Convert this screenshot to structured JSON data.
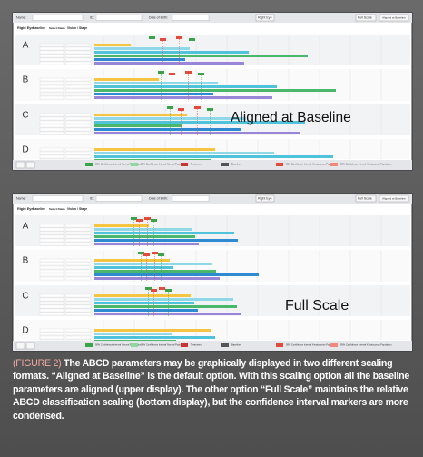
{
  "screenshots": [
    {
      "header": {
        "name_label": "Name:",
        "id_label": "ID:",
        "dob_label": "Date of Birth:",
        "eye": "Right Eye",
        "scale_option": "Full Scale",
        "alt_option": "Aligned at Baseline"
      },
      "side": {
        "eye": "Right Eye",
        "baseline": "Baseline",
        "select": "Select Dates",
        "column": "Vision / Stage"
      },
      "rows": [
        "A",
        "B",
        "C",
        "D"
      ],
      "overlay": "Aligned at Baseline",
      "legend": [
        "95% Confidence Interval Normal Population",
        "95% Confidence Interval Normal Population",
        "Treatment",
        "Baseline",
        "95% Confidence Interval Keratoconus Population",
        "95% Confidence Interval Keratoconus Population"
      ]
    },
    {
      "header": {
        "name_label": "Name:",
        "id_label": "ID:",
        "dob_label": "Date of Birth:",
        "eye": "Right Eye",
        "scale_option": "Full Scale",
        "alt_option": "Aligned at Baseline"
      },
      "side": {
        "eye": "Right Eye",
        "baseline": "Baseline",
        "select": "Select Dates",
        "column": "Vision / Stage"
      },
      "rows": [
        "A",
        "B",
        "C",
        "D"
      ],
      "overlay": "Full Scale",
      "legend": [
        "95% Confidence Interval Normal Population",
        "95% Confidence Interval Normal Population",
        "Treatment",
        "Baseline",
        "95% Confidence Interval Keratoconus Population",
        "95% Confidence Interval Keratoconus Population"
      ]
    }
  ],
  "caption": {
    "label": "(FIGURE 2)",
    "text": "The ABCD parameters may be graphically displayed in two different scaling formats. “Aligned at Baseline” is the default option. With this scaling option all the baseline parameters are aligned (upper display). The other option “Full Scale” maintains the relative ABCD classification scaling (bottom display), but the confidence interval markers are more condensed."
  }
}
